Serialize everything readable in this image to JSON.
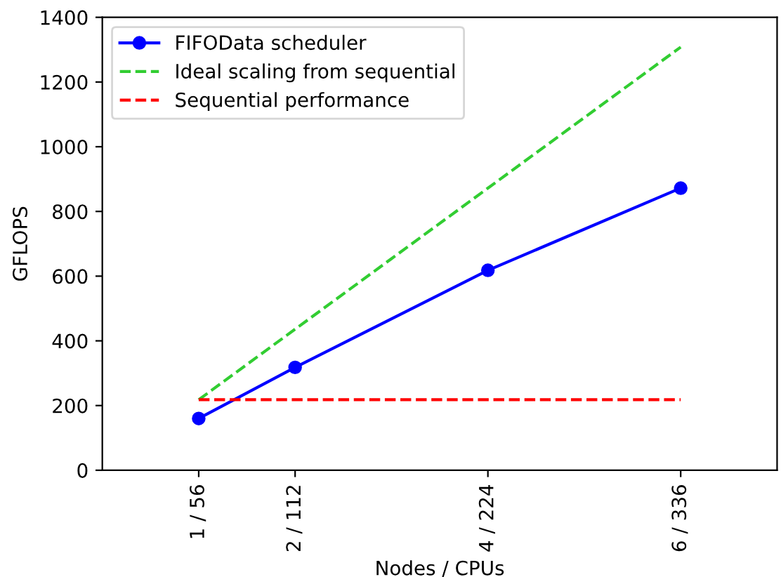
{
  "chart_data": {
    "type": "line",
    "xlabel": "Nodes / CPUs",
    "ylabel": "GFLOPS",
    "categories": [
      "1 / 56",
      "2 / 112",
      null,
      "4 / 224",
      null,
      "6 / 336"
    ],
    "ylim": [
      0,
      1400
    ],
    "yticks": [
      0,
      200,
      400,
      600,
      800,
      1000,
      1200,
      1400
    ],
    "series": [
      {
        "name": "FIFOData scheduler",
        "color": "#0000ff",
        "values": [
          160,
          318,
          null,
          618,
          null,
          872
        ],
        "marker": "circle",
        "line_style": "solid"
      },
      {
        "name": "Ideal scaling from sequential",
        "color": "#32cd32",
        "values": [
          218,
          436,
          654,
          872,
          1090,
          1308
        ],
        "marker": "none",
        "line_style": "dashed"
      },
      {
        "name": "Sequential performance",
        "color": "#ff0000",
        "values": [
          218,
          218,
          218,
          218,
          218,
          218
        ],
        "marker": "none",
        "line_style": "dashed"
      }
    ],
    "legend": "top left",
    "grid": false
  }
}
